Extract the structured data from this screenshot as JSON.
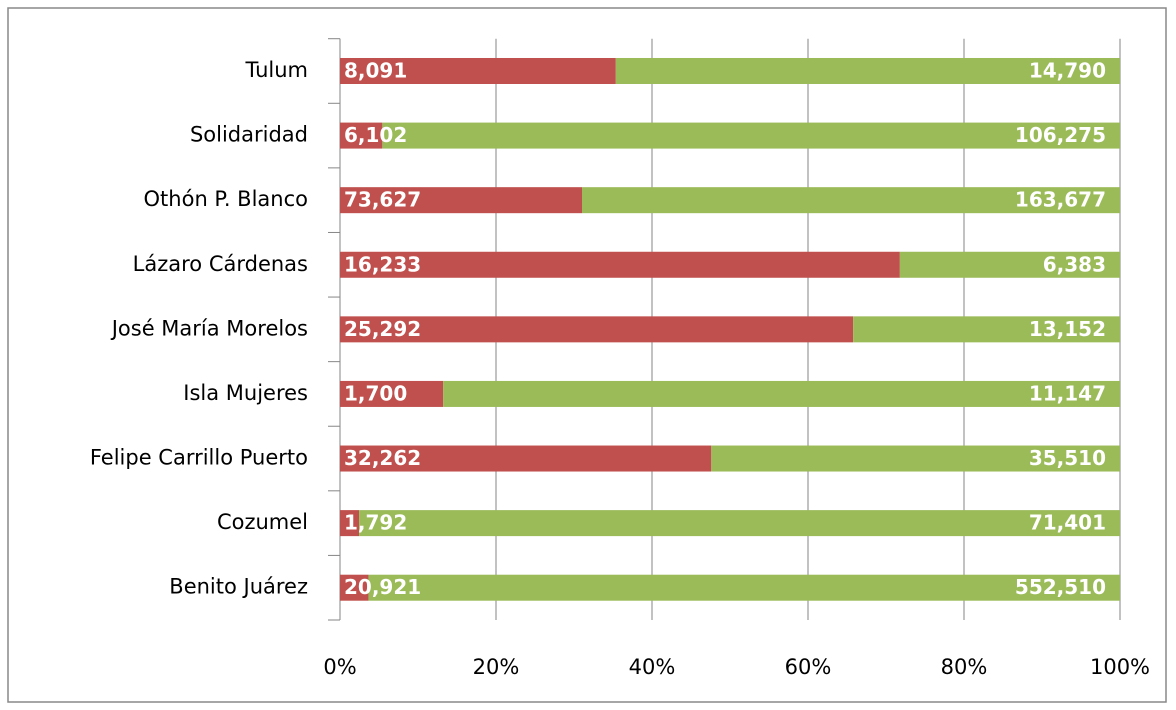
{
  "chart_data": {
    "type": "bar",
    "orientation": "horizontal",
    "stacked_percent": true,
    "categories": [
      "Tulum",
      "Solidaridad",
      "Othón P. Blanco",
      "Lázaro Cárdenas",
      "José María Morelos",
      "Isla Mujeres",
      "Felipe Carrillo Puerto",
      "Cozumel",
      "Benito Juárez"
    ],
    "series": [
      {
        "color": "#c0504d",
        "values": [
          8091,
          6102,
          73627,
          16233,
          25292,
          1700,
          32262,
          1792,
          20921
        ],
        "value_labels": [
          "8,091",
          "6,102",
          "73,627",
          "16,233",
          "25,292",
          "1,700",
          "32,262",
          "1,792",
          "20,921"
        ]
      },
      {
        "color": "#9bbb59",
        "values": [
          14790,
          106275,
          163677,
          6383,
          13152,
          11147,
          35510,
          71401,
          552510
        ],
        "value_labels": [
          "14,790",
          "106,275",
          "163,677",
          "6,383",
          "13,152",
          "11,147",
          "35,510",
          "71,401",
          "552,510"
        ]
      }
    ],
    "xlim": [
      0,
      100
    ],
    "xticks": [
      {
        "value": 0,
        "label": "0%"
      },
      {
        "value": 20,
        "label": "20%"
      },
      {
        "value": 40,
        "label": "40%"
      },
      {
        "value": 60,
        "label": "60%"
      },
      {
        "value": 80,
        "label": "80%"
      },
      {
        "value": 100,
        "label": "100%"
      }
    ],
    "grid": true
  }
}
